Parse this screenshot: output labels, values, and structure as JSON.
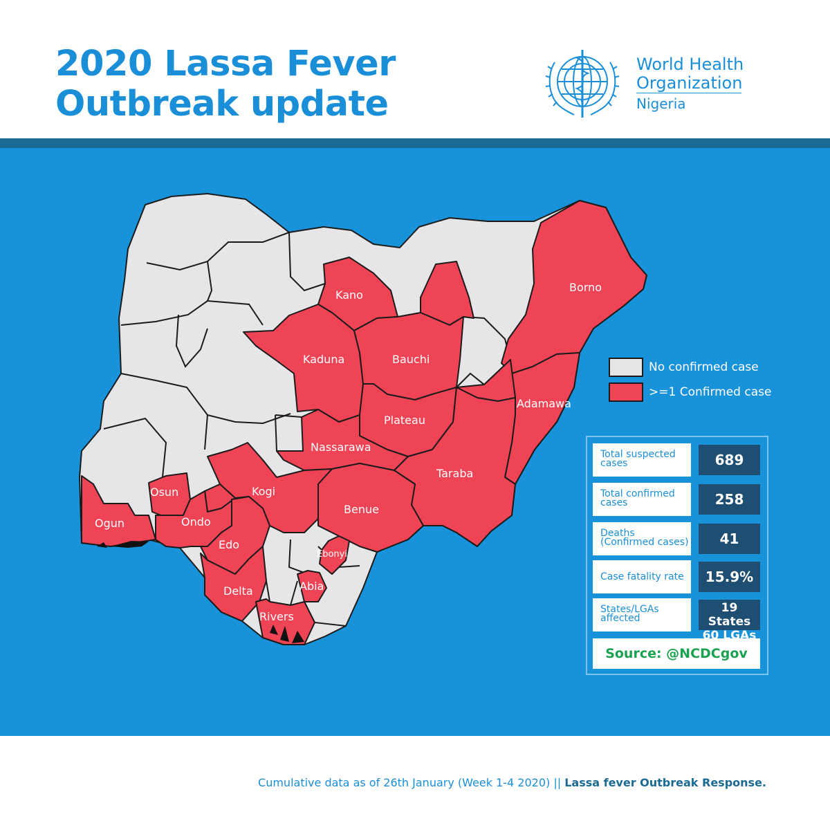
{
  "header": {
    "title_line1": "2020 Lassa Fever",
    "title_line2": "Outbreak update",
    "org_line1": "World Health",
    "org_line2": "Organization",
    "country": "Nigeria"
  },
  "legend": {
    "none_label": "No confirmed case",
    "case_label": ">=1 Confirmed case",
    "none_color": "#e6e6e8",
    "case_color": "#ef4356"
  },
  "map": {
    "states": {
      "kano": "Kano",
      "borno": "Borno",
      "kaduna": "Kaduna",
      "bauchi": "Bauchi",
      "adamawa": "Adamawa",
      "plateau": "Plateau",
      "nassarawa": "Nassarawa",
      "osun": "Osun",
      "kogi": "Kogi",
      "taraba": "Taraba",
      "ogun": "Ogun",
      "ondo": "Ondo",
      "benue": "Benue",
      "edo": "Edo",
      "ebonyi": "Ebonyi",
      "delta": "Delta",
      "abia": "Abia",
      "rivers": "Rivers"
    }
  },
  "stats": {
    "suspected": {
      "label_1": "Total suspected",
      "label_2": "cases",
      "value": "689"
    },
    "confirmed": {
      "label_1": "Total confirmed",
      "label_2": "cases",
      "value": "258"
    },
    "deaths": {
      "label_1": "Deaths",
      "label_2": "(Confirmed cases)",
      "value": "41"
    },
    "cfr": {
      "label_1": "Case fatality rate",
      "label_2": "",
      "value": "15.9%"
    },
    "affected": {
      "label_1": "States/LGAs",
      "label_2": "affected",
      "value_1": "19 States",
      "value_2": "60 LGAs"
    },
    "source": "Source: @NCDCgov"
  },
  "footer": {
    "text": "Cumulative data as of 26th January (Week 1-4 2020) || ",
    "bold": "Lassa fever Outbreak Response."
  }
}
